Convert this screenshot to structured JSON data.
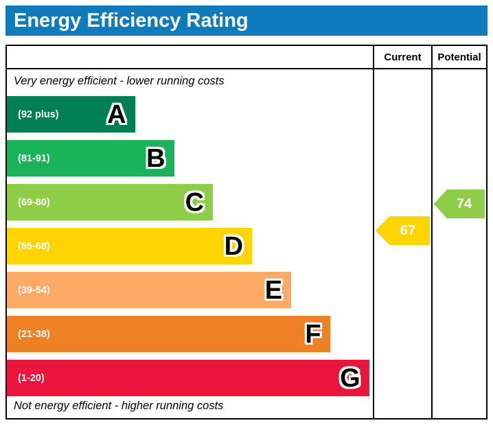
{
  "title": "Energy Efficiency Rating",
  "columns": {
    "current": "Current",
    "potential": "Potential"
  },
  "captions": {
    "top": "Very energy efficient - lower running costs",
    "bottom": "Not energy efficient - higher running costs"
  },
  "chart_data": {
    "type": "bar",
    "subtype": "epc-energy-efficiency-rating",
    "bands": [
      {
        "letter": "A",
        "label": "(92 plus)",
        "min": 92,
        "max": 100,
        "color": "#008054",
        "width_pct": 35
      },
      {
        "letter": "B",
        "label": "(81-91)",
        "min": 81,
        "max": 91,
        "color": "#19b459",
        "width_pct": 45.7
      },
      {
        "letter": "C",
        "label": "(69-80)",
        "min": 69,
        "max": 80,
        "color": "#8dce46",
        "width_pct": 56.3
      },
      {
        "letter": "D",
        "label": "(55-68)",
        "min": 55,
        "max": 68,
        "color": "#ffd500",
        "width_pct": 67
      },
      {
        "letter": "E",
        "label": "(39-54)",
        "min": 39,
        "max": 54,
        "color": "#fcaa65",
        "width_pct": 77.7
      },
      {
        "letter": "F",
        "label": "(21-38)",
        "min": 21,
        "max": 38,
        "color": "#ef8023",
        "width_pct": 88.3
      },
      {
        "letter": "G",
        "label": "(1-20)",
        "min": 1,
        "max": 20,
        "color": "#e9153b",
        "width_pct": 99
      }
    ],
    "current": {
      "value": 67,
      "band": "D",
      "color": "#ffd500"
    },
    "potential": {
      "value": 74,
      "band": "C",
      "color": "#8dce46"
    }
  },
  "style": {
    "header_bg": "#0f7bbf",
    "border_color": "#000000"
  }
}
